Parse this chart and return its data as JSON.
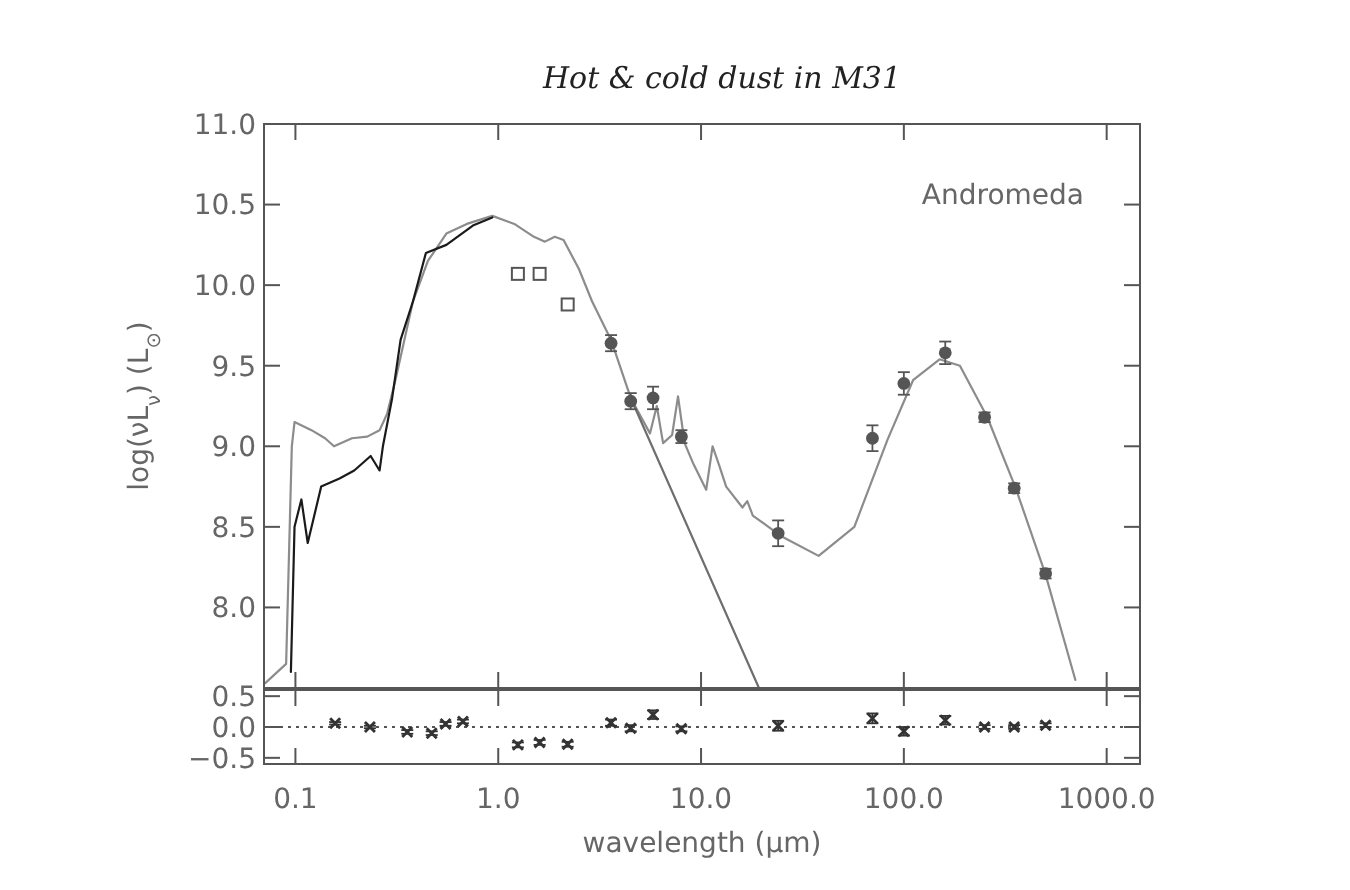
{
  "chart_data": [
    {
      "type": "line",
      "title": "Hot & cold dust in M31",
      "ylabel": "log(νL$_{ν}$) (L$_{⊙}$)",
      "annotations": [
        "Andromeda"
      ],
      "log": "x",
      "xlim": [
        0.07,
        1460
      ],
      "ylim": [
        7.5,
        11.0
      ],
      "xticks": [
        {
          "value": 0.1,
          "label": null
        },
        {
          "value": 1,
          "label": null
        },
        {
          "value": 10,
          "label": null
        },
        {
          "value": 100,
          "label": null
        },
        {
          "value": 1000,
          "label": null
        }
      ],
      "yticks": [
        {
          "value": 8,
          "label": "8.0"
        },
        {
          "value": 8.5,
          "label": "8.5"
        },
        {
          "value": 9,
          "label": "9.0"
        },
        {
          "value": 9.5,
          "label": "9.5"
        },
        {
          "value": 10,
          "label": "10.0"
        },
        {
          "value": 10.5,
          "label": "10.5"
        },
        {
          "value": 11,
          "label": "11.0"
        }
      ],
      "tick_labels": "y",
      "grid": false,
      "series": [
        {
          "color": "#8c8c8c",
          "x": [
            0.071,
            0.09,
            0.096,
            0.099,
            0.12,
            0.14,
            0.155,
            0.19,
            0.226,
            0.26,
            0.283,
            0.31,
            0.38,
            0.45,
            0.555,
            0.7,
            0.935,
            1.2,
            1.5,
            1.7,
            1.9,
            2.1,
            2.5,
            2.9,
            3.6,
            4.5,
            5.6,
            6.05,
            6.5,
            7.2,
            7.7,
            8.3,
            9.1,
            10.6,
            11.4,
            12.3,
            13.3,
            16,
            16.9,
            18,
            25,
            38,
            57,
            83,
            111,
            150,
            189,
            258,
            356,
            498,
            701
          ],
          "values": [
            7.53,
            7.65,
            9.0,
            9.15,
            9.1,
            9.05,
            9.0,
            9.05,
            9.06,
            9.1,
            9.2,
            9.4,
            9.9,
            10.15,
            10.32,
            10.38,
            10.43,
            10.38,
            10.3,
            10.27,
            10.3,
            10.28,
            10.1,
            9.9,
            9.66,
            9.3,
            9.08,
            9.25,
            9.02,
            9.07,
            9.31,
            9.02,
            8.9,
            8.73,
            9.0,
            8.88,
            8.75,
            8.62,
            8.66,
            8.57,
            8.44,
            8.32,
            8.5,
            9.04,
            9.41,
            9.54,
            9.5,
            9.18,
            8.74,
            8.21,
            7.55
          ]
        },
        {
          "color": "#6e6e6e",
          "x": [
            4.5,
            19.3
          ],
          "values": [
            9.3,
            7.5
          ]
        },
        {
          "color": "#1a1a1a",
          "x": [
            0.095,
            0.099,
            0.107,
            0.115,
            0.134,
            0.165,
            0.195,
            0.235,
            0.26,
            0.27,
            0.3,
            0.33,
            0.38,
            0.44,
            0.555,
            0.75,
            0.935
          ],
          "values": [
            7.6,
            8.5,
            8.67,
            8.4,
            8.75,
            8.8,
            8.85,
            8.94,
            8.85,
            9.0,
            9.3,
            9.66,
            9.9,
            10.2,
            10.25,
            10.37,
            10.42
          ]
        },
        {
          "type": "scatter",
          "marker": "square",
          "color": "#555555",
          "x": [
            1.25,
            1.6,
            2.2
          ],
          "values": [
            10.07,
            10.07,
            9.88
          ],
          "errors": [
            0.03,
            0.03,
            0.03
          ]
        },
        {
          "type": "scatter",
          "marker": "circle",
          "color": "#555555",
          "x": [
            3.6,
            4.5,
            5.8,
            8.0,
            24,
            70,
            100,
            160,
            250,
            350,
            500
          ],
          "values": [
            9.64,
            9.28,
            9.3,
            9.06,
            8.46,
            9.05,
            9.39,
            9.58,
            9.18,
            8.74,
            8.21
          ],
          "errors": [
            0.05,
            0.05,
            0.07,
            0.04,
            0.08,
            0.08,
            0.07,
            0.07,
            0.03,
            0.03,
            0.03
          ]
        }
      ]
    },
    {
      "type": "scatter",
      "xlabel": "wavelength (μm)",
      "log": "x",
      "xlim": [
        0.07,
        1460
      ],
      "ylim": [
        -0.6,
        0.6
      ],
      "xticks": [
        {
          "value": 0.1,
          "label": "0.1"
        },
        {
          "value": 1,
          "label": "1.0"
        },
        {
          "value": 10,
          "label": "10.0"
        },
        {
          "value": 100,
          "label": "100.0"
        },
        {
          "value": 1000,
          "label": "1000.0"
        }
      ],
      "yticks": [
        {
          "value": -0.5,
          "label": "−0.5"
        },
        {
          "value": 0,
          "label": "0.0"
        },
        {
          "value": 0.5,
          "label": "0.5"
        }
      ],
      "grid": false,
      "ref_lines": [
        {
          "axis": "y",
          "value": 0,
          "line_style": "dotted",
          "color": "#555555"
        }
      ],
      "series": [
        {
          "marker": "cross",
          "color": "#333333",
          "x": [
            0.157,
            0.233,
            0.356,
            0.47,
            0.55,
            0.67,
            1.25,
            1.6,
            2.2,
            3.6,
            4.5,
            5.8,
            8.0,
            24,
            70,
            100,
            160,
            250,
            350,
            500
          ],
          "values": [
            0.06,
            0.0,
            -0.08,
            -0.1,
            0.05,
            0.09,
            -0.29,
            -0.25,
            -0.28,
            0.07,
            -0.02,
            0.2,
            -0.03,
            0.02,
            0.14,
            -0.07,
            0.11,
            0.0,
            0.0,
            0.03
          ],
          "errors": [
            0.02,
            0.02,
            0.03,
            0.03,
            0.03,
            0.03,
            0.04,
            0.04,
            0.04,
            0.05,
            0.05,
            0.07,
            0.04,
            0.08,
            0.08,
            0.07,
            0.07,
            0.03,
            0.03,
            0.03
          ]
        }
      ]
    }
  ]
}
